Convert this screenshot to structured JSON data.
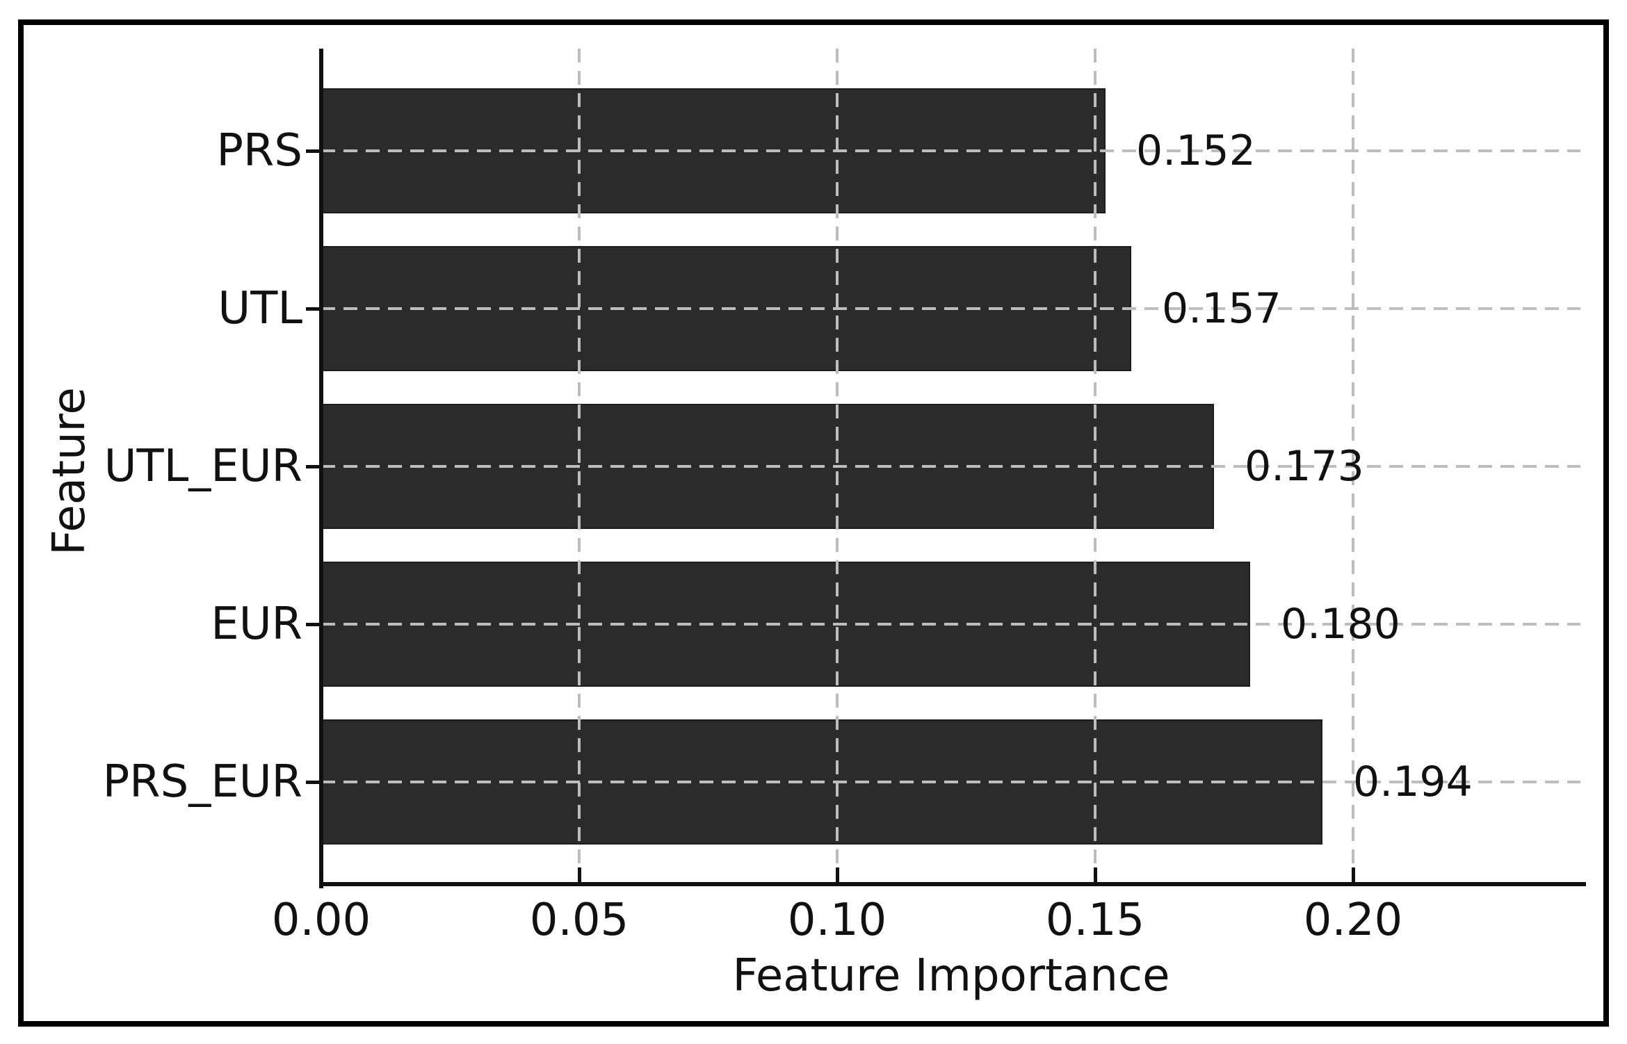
{
  "chart_data": {
    "type": "bar",
    "orientation": "horizontal",
    "title": "",
    "xlabel": "Feature Importance",
    "ylabel": "Feature",
    "categories": [
      "PRS",
      "UTL",
      "UTL_EUR",
      "EUR",
      "PRS_EUR"
    ],
    "values": [
      0.152,
      0.157,
      0.173,
      0.18,
      0.194
    ],
    "value_labels": [
      "0.152",
      "0.157",
      "0.173",
      "0.180",
      "0.194"
    ],
    "xticks": {
      "values": [
        0.0,
        0.05,
        0.1,
        0.15,
        0.2
      ],
      "labels": [
        "0.00",
        "0.05",
        "0.10",
        "0.15",
        "0.20"
      ]
    },
    "xlim": [
      0,
      0.244
    ],
    "grid": "dashed, both axes, drawn over bars",
    "legend": "none",
    "colors": {
      "bar_fill": "#2b2b2b",
      "bar_edge": "#1c1c1c",
      "gridline": "#bdbdbd",
      "axis_and_text": "#111111",
      "figure_border": "#000000",
      "background": "#ffffff"
    }
  }
}
